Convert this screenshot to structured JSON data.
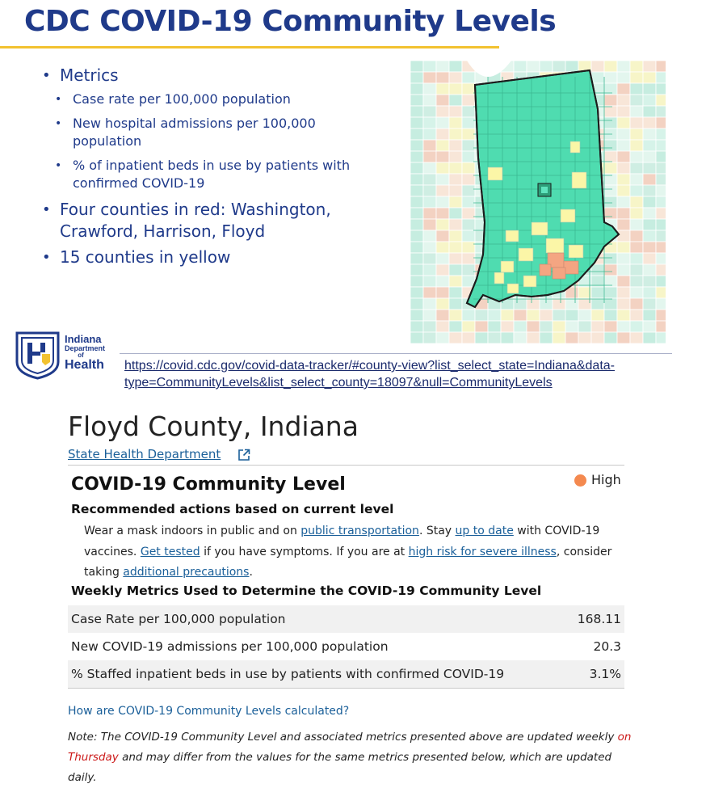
{
  "slide": {
    "title": "CDC COVID-19 Community Levels",
    "bullets": {
      "metrics": "Metrics",
      "case_rate": "Case rate per 100,000 population",
      "hosp": "New hospital admissions per 100,000 population",
      "beds": "% of inpatient beds in use by patients with confirmed COVID-19",
      "red": "Four counties in red:  Washington, Crawford, Harrison, Floyd",
      "yellow": "15 counties in yellow"
    },
    "logo": {
      "line1": "Indiana",
      "line2": "Department",
      "line3": "of",
      "line4": "Health"
    },
    "url_part1": "https://covid.cdc.gov/covid-data-tracker/#county-view?list_select_state=Indiana&data-",
    "url_part2": "type=CommunityLevels&list_select_county=18097&null=CommunityLevels",
    "map_colors": {
      "low": "#4fdcb0",
      "medium": "#fbf6a7",
      "high": "#f4a582"
    }
  },
  "county": {
    "title": "Floyd County, Indiana",
    "state_link": "State Health Department ",
    "level_heading": "COVID-19 Community Level",
    "level_value": "High",
    "level_color": "#f4894f",
    "rec_heading": "Recommended actions based on current level",
    "rec": {
      "t1": "Wear a mask indoors in public and on ",
      "l1": "public transportation",
      "t2": ". Stay ",
      "l2": "up to date",
      "t3": " with COVID-19 vaccines. ",
      "l3": "Get tested",
      "t4": " if you have symptoms. If you are at ",
      "l4": "high risk for severe illness",
      "t5": ", consider taking ",
      "l5": "additional precautions",
      "t6": "."
    },
    "weekly_heading": "Weekly Metrics Used to Determine the COVID-19 Community Level",
    "metrics": [
      {
        "label": "Case Rate per 100,000 population",
        "value": "168.11"
      },
      {
        "label": "New COVID-19 admissions per 100,000 population",
        "value": "20.3"
      },
      {
        "label": "% Staffed inpatient beds in use by patients with confirmed COVID-19",
        "value": "3.1%"
      }
    ],
    "how_link": "How are COVID-19 Community Levels calculated?",
    "note": {
      "t1": "Note: The COVID-19 Community Level and associated metrics presented above are updated weekly ",
      "red": "on Thursday",
      "t2": " and may differ from the values for the same metrics presented below, which are updated daily."
    }
  }
}
